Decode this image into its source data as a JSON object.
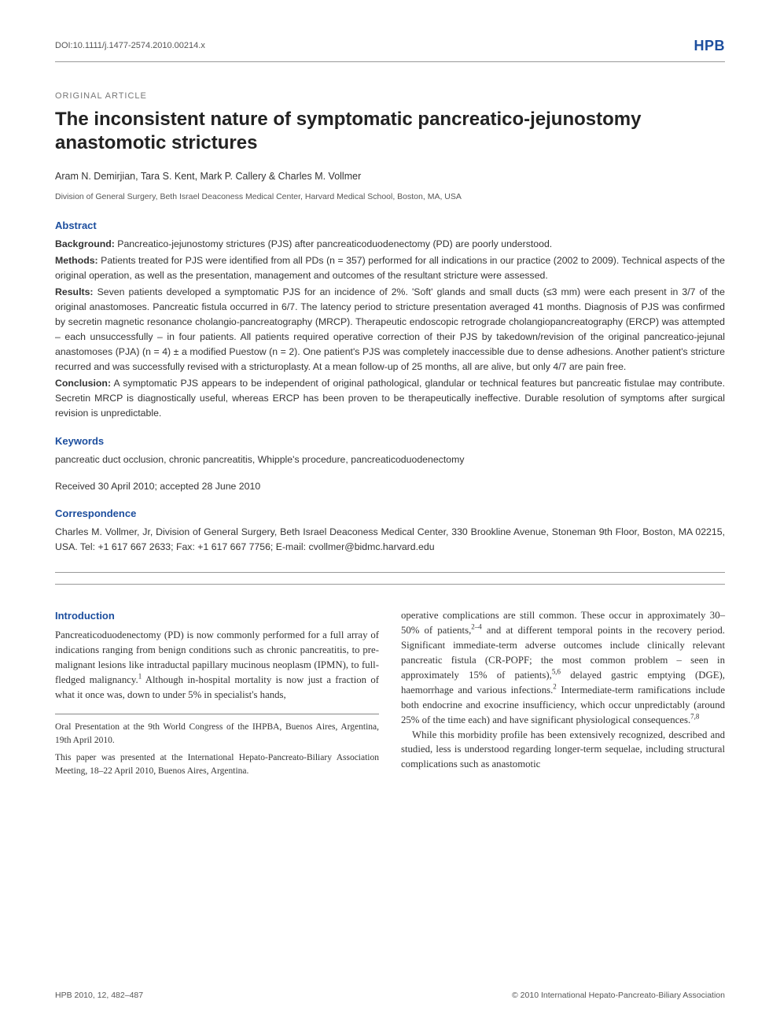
{
  "header": {
    "doi": "DOI:10.1111/j.1477-2574.2010.00214.x",
    "journal": "HPB",
    "journal_color": "#1c4e9e"
  },
  "article": {
    "type": "ORIGINAL ARTICLE",
    "title": "The inconsistent nature of symptomatic pancreatico-jejunostomy anastomotic strictures",
    "authors": "Aram N. Demirjian, Tara S. Kent, Mark P. Callery & Charles M. Vollmer",
    "affiliation": "Division of General Surgery, Beth Israel Deaconess Medical Center, Harvard Medical School, Boston, MA, USA"
  },
  "abstract": {
    "heading": "Abstract",
    "background_label": "Background:",
    "background": " Pancreatico-jejunostomy strictures (PJS) after pancreaticoduodenectomy (PD) are poorly understood.",
    "methods_label": "Methods:",
    "methods": " Patients treated for PJS were identified from all PDs (n = 357) performed for all indications in our practice (2002 to 2009). Technical aspects of the original operation, as well as the presentation, management and outcomes of the resultant stricture were assessed.",
    "results_label": "Results:",
    "results": " Seven patients developed a symptomatic PJS for an incidence of 2%. 'Soft' glands and small ducts (≤3 mm) were each present in 3/7 of the original anastomoses. Pancreatic fistula occurred in 6/7. The latency period to stricture presentation averaged 41 months. Diagnosis of PJS was confirmed by secretin magnetic resonance cholangio-pancreatography (MRCP). Therapeutic endoscopic retrograde cholangiopancreatography (ERCP) was attempted – each unsuccessfully – in four patients. All patients required operative correction of their PJS by takedown/revision of the original pancreatico-jejunal anastomoses (PJA) (n = 4) ± a modified Puestow (n = 2). One patient's PJS was completely inaccessible due to dense adhesions. Another patient's stricture recurred and was successfully revised with a stricturoplasty. At a mean follow-up of 25 months, all are alive, but only 4/7 are pain free.",
    "conclusion_label": "Conclusion:",
    "conclusion": " A symptomatic PJS appears to be independent of original pathological, glandular or technical features but pancreatic fistulae may contribute. Secretin MRCP is diagnostically useful, whereas ERCP has been proven to be therapeutically ineffective. Durable resolution of symptoms after surgical revision is unpredictable."
  },
  "keywords": {
    "heading": "Keywords",
    "text": "pancreatic duct occlusion, chronic pancreatitis, Whipple's procedure, pancreaticoduodenectomy"
  },
  "received": "Received 30 April 2010; accepted 28 June 2010",
  "correspondence": {
    "heading": "Correspondence",
    "text": "Charles M. Vollmer, Jr, Division of General Surgery, Beth Israel Deaconess Medical Center, 330 Brookline Avenue, Stoneman 9th Floor, Boston, MA 02215, USA. Tel: +1 617 667 2633; Fax: +1 617 667 7756; E-mail: cvollmer@bidmc.harvard.edu"
  },
  "body": {
    "intro_heading": "Introduction",
    "col1_p1_a": "Pancreaticoduodenectomy (PD) is now commonly performed for a full array of indications ranging from benign conditions such as chronic pancreatitis, to pre-malignant lesions like intraductal papillary mucinous neoplasm (IPMN), to full-fledged malignancy.",
    "col1_p1_b": " Although in-hospital mortality is now just a fraction of what it once was, down to under 5% in specialist's hands,",
    "footnote1": "Oral Presentation at the 9th World Congress of the IHPBA, Buenos Aires, Argentina, 19th April 2010.",
    "footnote2": "This paper was presented at the International Hepato-Pancreato-Biliary Association Meeting, 18–22 April 2010, Buenos Aires, Argentina.",
    "col2_p1_a": "operative complications are still common. These occur in approximately 30–50% of patients,",
    "col2_p1_b": " and at different temporal points in the recovery period. Significant immediate-term adverse outcomes include clinically relevant pancreatic fistula (CR-POPF; the most common problem – seen in approximately 15% of patients),",
    "col2_p1_c": " delayed gastric emptying (DGE), haemorrhage and various infections.",
    "col2_p1_d": " Intermediate-term ramifications include both endocrine and exocrine insufficiency, which occur unpredictably (around 25% of the time each) and have significant physiological consequences.",
    "col2_p2": "While this morbidity profile has been extensively recognized, described and studied, less is understood regarding longer-term sequelae, including structural complications such as anastomotic",
    "sup1": "1",
    "sup24": "2–4",
    "sup56": "5,6",
    "sup2": "2",
    "sup78": "7,8"
  },
  "footer": {
    "left": "HPB 2010, 12, 482–487",
    "right": "© 2010 International Hepato-Pancreato-Biliary Association"
  },
  "colors": {
    "accent": "#1c4e9e",
    "text": "#333333",
    "muted": "#777777",
    "rule": "#999999",
    "background": "#ffffff"
  },
  "typography": {
    "body_font": "Arial, Helvetica, sans-serif",
    "serif_font": "Georgia, Times New Roman, serif",
    "title_size_pt": 18,
    "body_size_pt": 9.5,
    "section_head_size_pt": 10
  }
}
